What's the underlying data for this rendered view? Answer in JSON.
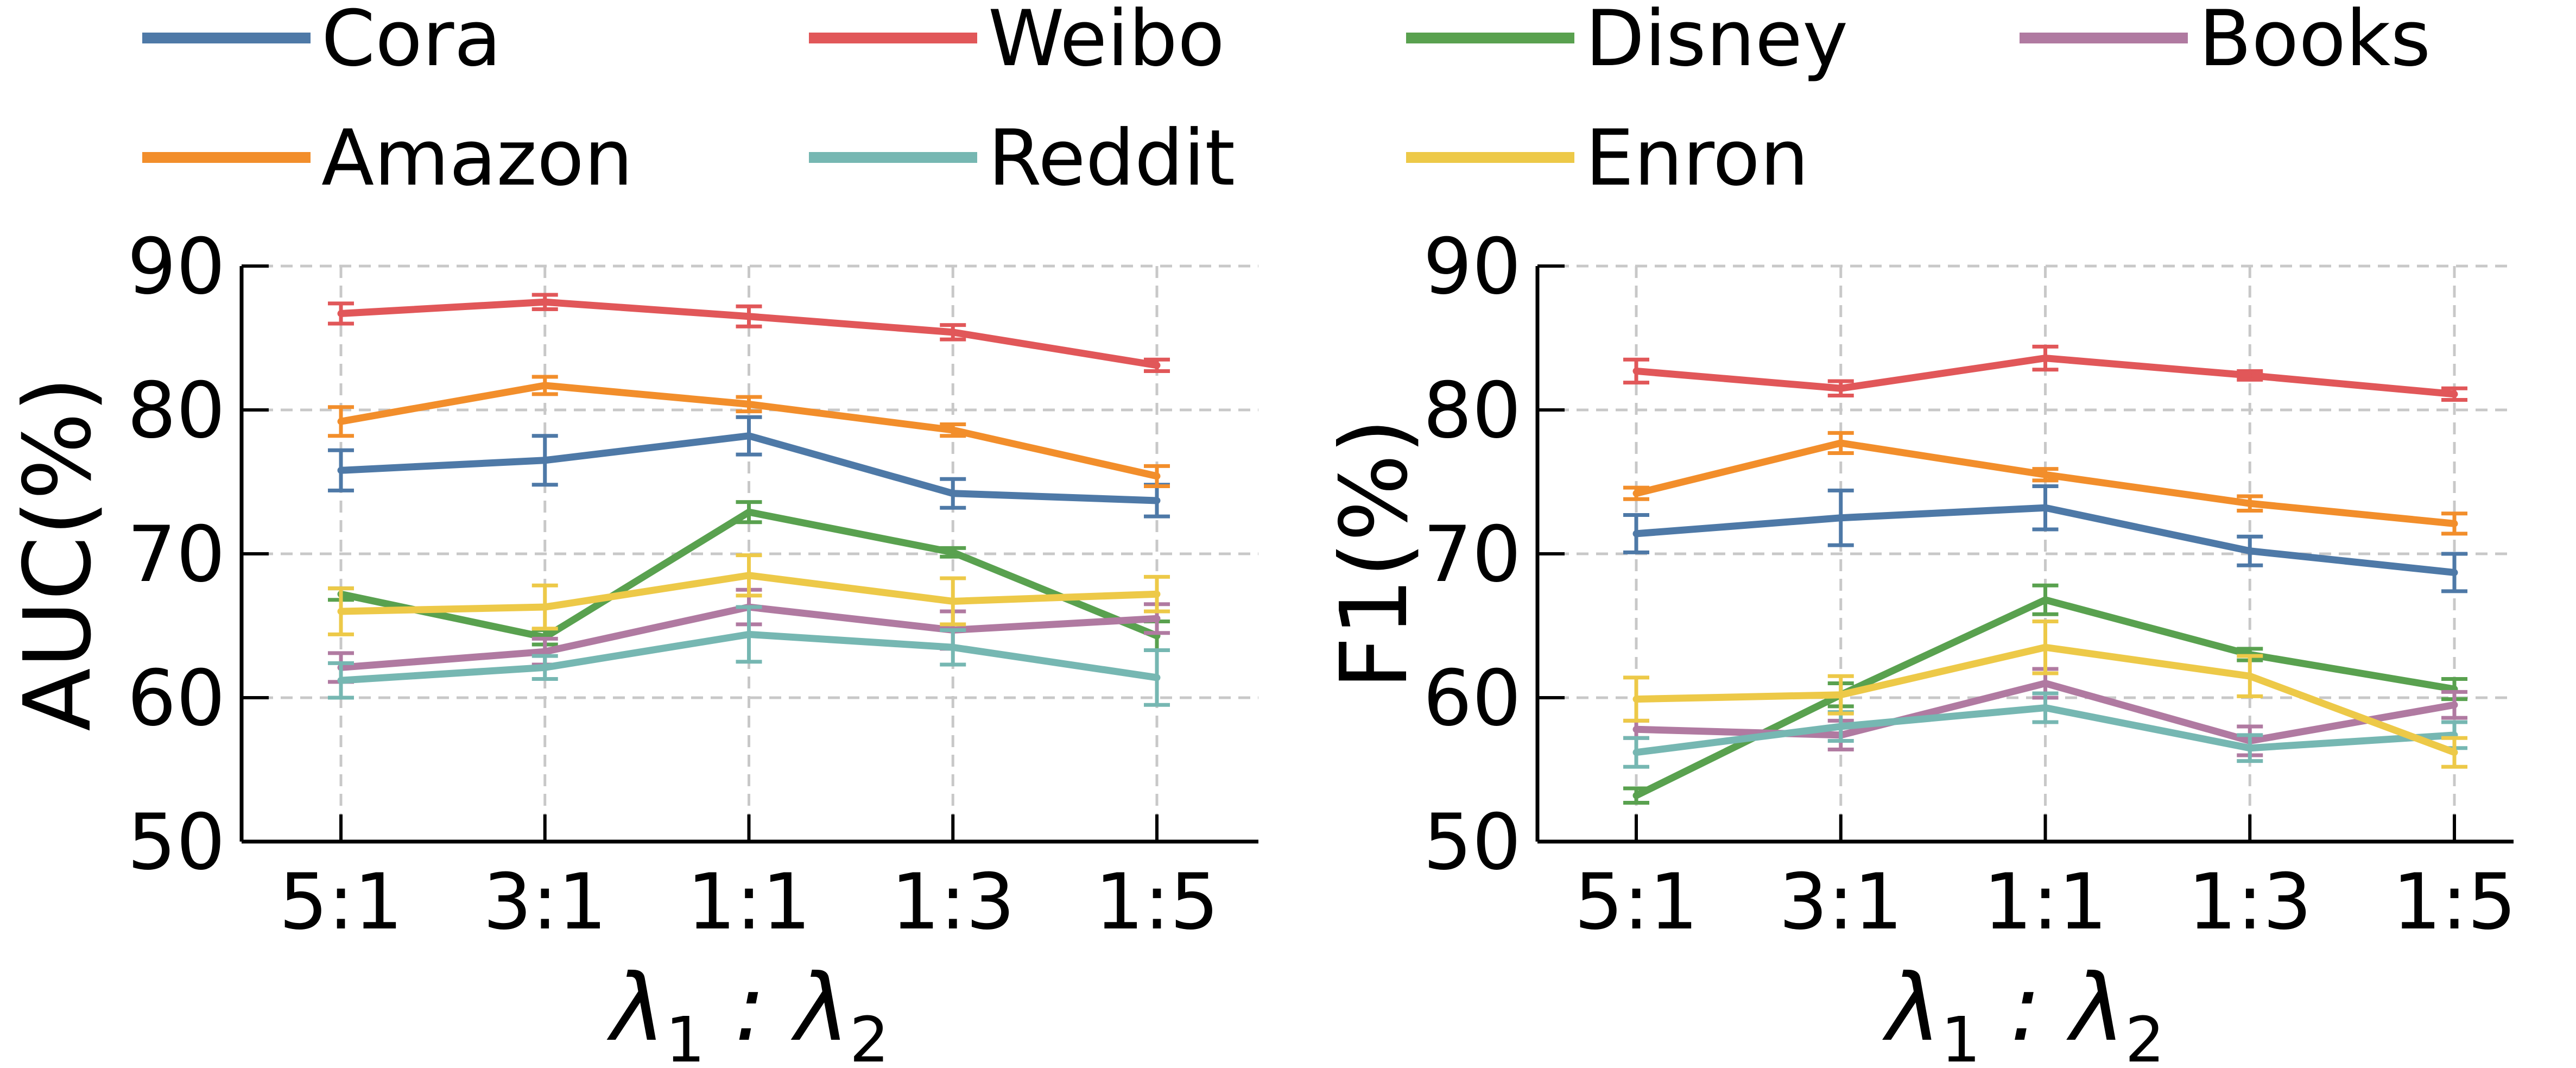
{
  "chart_data": [
    {
      "type": "line",
      "title": "",
      "xlabel": "λ1 : λ2",
      "ylabel": "AUC(%)",
      "categories": [
        "5:1",
        "3:1",
        "1:1",
        "1:3",
        "1:5"
      ],
      "ylim": [
        50,
        90
      ],
      "yticks": [
        50,
        60,
        70,
        80,
        90
      ],
      "grid": true,
      "series": [
        {
          "name": "Cora",
          "color": "#4e79a7",
          "values": [
            75.8,
            76.5,
            78.2,
            74.2,
            73.7
          ],
          "errors": [
            1.4,
            1.7,
            1.3,
            1.0,
            1.1
          ]
        },
        {
          "name": "Weibo",
          "color": "#e15759",
          "values": [
            86.7,
            87.5,
            86.5,
            85.4,
            83.1
          ],
          "errors": [
            0.7,
            0.5,
            0.7,
            0.5,
            0.4
          ]
        },
        {
          "name": "Disney",
          "color": "#59a14f",
          "values": [
            67.2,
            64.2,
            72.9,
            70.1,
            64.3
          ],
          "errors": [
            0.4,
            0.5,
            0.7,
            0.3,
            1.0
          ]
        },
        {
          "name": "Books",
          "color": "#b07aa1",
          "values": [
            62.1,
            63.2,
            66.3,
            64.7,
            65.5
          ],
          "errors": [
            1.0,
            0.9,
            1.2,
            1.3,
            1.0
          ]
        },
        {
          "name": "Amazon",
          "color": "#f28e2b",
          "values": [
            79.2,
            81.7,
            80.4,
            78.6,
            75.4
          ],
          "errors": [
            1.0,
            0.6,
            0.5,
            0.4,
            0.7
          ]
        },
        {
          "name": "Reddit",
          "color": "#76b7b2",
          "values": [
            61.2,
            62.1,
            64.4,
            63.5,
            61.4
          ],
          "errors": [
            1.2,
            0.8,
            1.9,
            1.2,
            1.9
          ]
        },
        {
          "name": "Enron",
          "color": "#edc948",
          "values": [
            66.0,
            66.3,
            68.5,
            66.7,
            67.2
          ],
          "errors": [
            1.6,
            1.5,
            1.4,
            1.6,
            1.2
          ]
        }
      ]
    },
    {
      "type": "line",
      "title": "",
      "xlabel": "λ1 : λ2",
      "ylabel": "F1(%)",
      "categories": [
        "5:1",
        "3:1",
        "1:1",
        "1:3",
        "1:5"
      ],
      "ylim": [
        50,
        90
      ],
      "yticks": [
        50,
        60,
        70,
        80,
        90
      ],
      "grid": true,
      "series": [
        {
          "name": "Cora",
          "color": "#4e79a7",
          "values": [
            71.4,
            72.5,
            73.2,
            70.2,
            68.7
          ],
          "errors": [
            1.3,
            1.9,
            1.5,
            1.0,
            1.3
          ]
        },
        {
          "name": "Weibo",
          "color": "#e15759",
          "values": [
            82.7,
            81.5,
            83.6,
            82.4,
            81.1
          ],
          "errors": [
            0.8,
            0.5,
            0.8,
            0.3,
            0.4
          ]
        },
        {
          "name": "Disney",
          "color": "#59a14f",
          "values": [
            53.2,
            60.2,
            66.8,
            63.0,
            60.6
          ],
          "errors": [
            0.5,
            0.8,
            1.0,
            0.4,
            0.7
          ]
        },
        {
          "name": "Books",
          "color": "#b07aa1",
          "values": [
            57.8,
            57.4,
            61.0,
            57.0,
            59.5
          ],
          "errors": [
            0.6,
            1.0,
            1.0,
            1.0,
            0.9
          ]
        },
        {
          "name": "Amazon",
          "color": "#f28e2b",
          "values": [
            74.2,
            77.7,
            75.5,
            73.5,
            72.1
          ],
          "errors": [
            0.4,
            0.7,
            0.4,
            0.5,
            0.7
          ]
        },
        {
          "name": "Reddit",
          "color": "#76b7b2",
          "values": [
            56.2,
            58.0,
            59.3,
            56.5,
            57.4
          ],
          "errors": [
            1.0,
            1.0,
            1.0,
            0.9,
            0.9
          ]
        },
        {
          "name": "Enron",
          "color": "#edc948",
          "values": [
            59.9,
            60.2,
            63.5,
            61.5,
            56.2
          ],
          "errors": [
            1.5,
            1.3,
            1.8,
            1.4,
            1.0
          ]
        }
      ]
    }
  ],
  "legend": {
    "placement": "top",
    "items": [
      {
        "label": "Cora",
        "color": "#4e79a7"
      },
      {
        "label": "Weibo",
        "color": "#e15759"
      },
      {
        "label": "Disney",
        "color": "#59a14f"
      },
      {
        "label": "Books",
        "color": "#b07aa1"
      },
      {
        "label": "Amazon",
        "color": "#f28e2b"
      },
      {
        "label": "Reddit",
        "color": "#76b7b2"
      },
      {
        "label": "Enron",
        "color": "#edc948"
      }
    ]
  }
}
